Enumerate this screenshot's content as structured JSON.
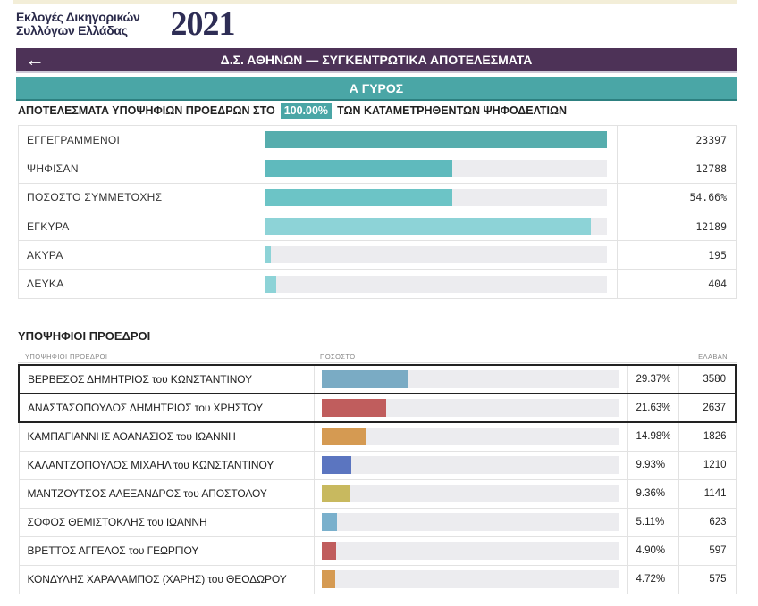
{
  "header": {
    "logo_line1": "Εκλογές Δικηγορικών",
    "logo_line2": "Συλλόγων Ελλάδας",
    "year": "2021"
  },
  "titlebar": {
    "title": "Δ.Σ. ΑΘΗΝΩΝ — ΣΥΓΚΕΝΤΡΩΤΙΚΑ ΑΠΟΤΕΛΕΣΜΑΤΑ",
    "back_icon": "arrow-left-icon"
  },
  "round": {
    "label": "Α ΓΥΡΟΣ"
  },
  "results_head": {
    "prefix": "ΑΠΟΤΕΛΕΣΜΑΤΑ ΥΠΟΨΗΦΙΩΝ ΠΡΟΕΔΡΩΝ ΣΤΟ",
    "percent": "100.00%",
    "suffix": "ΤΩΝ ΚΑΤΑΜΕΤΡΗΘΕΝΤΩΝ ΨΗΦΟΔΕΛΤΙΩΝ"
  },
  "stats": [
    {
      "label": "ΕΓΓΕΓΡΑΜΜΕΝΟΙ",
      "value": "23397",
      "fraction": 1.0,
      "color": "#56adad"
    },
    {
      "label": "ΨΗΦΙΣΑΝ",
      "value": "12788",
      "fraction": 0.5466,
      "color": "#5fbabd"
    },
    {
      "label": "ΠΟΣΟΣΤΟ ΣΥΜΜΕΤΟΧΗΣ",
      "value": "54.66%",
      "fraction": 0.5466,
      "color": "#6cc4c6"
    },
    {
      "label": "ΕΓΚΥΡΑ",
      "value": "12189",
      "fraction": 0.953,
      "color": "#8dd3d7"
    },
    {
      "label": "ΑΚΥΡΑ",
      "value": "195",
      "fraction": 0.015,
      "color": "#8dd3d7"
    },
    {
      "label": "ΛΕΥΚΑ",
      "value": "404",
      "fraction": 0.031,
      "color": "#8dd3d7"
    }
  ],
  "candidates_section": {
    "title": "ΥΠΟΨΗΦΙΟΙ ΠΡΟΕΔΡΟΙ",
    "col_name": "ΥΠΟΨΗΦΙΟΙ ΠΡΟΕΔΡΟΙ",
    "col_pct": "ΠΟΣΟΣΤΟ",
    "col_votes": "ΕΛΑΒΑΝ"
  },
  "candidates": [
    {
      "name": "ΒΕΡΒΕΣΟΣ ΔΗΜΗΤΡΙΟΣ του ΚΩΝΣΤΑΝΤΙΝΟΥ",
      "percent": "29.37%",
      "votes": "3580",
      "fraction": 0.2937,
      "color": "#7aabc4",
      "highlight": true
    },
    {
      "name": "ΑΝΑΣΤΑΣΟΠΟΥΛΟΣ ΔΗΜΗΤΡΙΟΣ του ΧΡΗΣΤΟΥ",
      "percent": "21.63%",
      "votes": "2637",
      "fraction": 0.2163,
      "color": "#c05d5d",
      "highlight": true
    },
    {
      "name": "ΚΑΜΠΑΓΙΑΝΝΗΣ ΑΘΑΝΑΣΙΟΣ του ΙΩΑΝΝΗ",
      "percent": "14.98%",
      "votes": "1826",
      "fraction": 0.1498,
      "color": "#d59a52",
      "highlight": false
    },
    {
      "name": "ΚΑΛΑΝΤΖΟΠΟΥΛΟΣ ΜΙΧΑΗΛ του ΚΩΝΣΤΑΝΤΙΝΟΥ",
      "percent": "9.93%",
      "votes": "1210",
      "fraction": 0.0993,
      "color": "#5b75c0",
      "highlight": false
    },
    {
      "name": "ΜΑΝΤΖΟΥΤΣΟΣ ΑΛΕΞΑΝΔΡΟΣ του ΑΠΟΣΤΟΛΟΥ",
      "percent": "9.36%",
      "votes": "1141",
      "fraction": 0.0936,
      "color": "#c8b95f",
      "highlight": false
    },
    {
      "name": "ΣΟΦΟΣ ΘΕΜΙΣΤΟΚΛΗΣ του ΙΩΑΝΝΗ",
      "percent": "5.11%",
      "votes": "623",
      "fraction": 0.0511,
      "color": "#7ab0cc",
      "highlight": false
    },
    {
      "name": "ΒΡΕΤΤΟΣ ΑΓΓΕΛΟΣ του ΓΕΩΡΓΙΟΥ",
      "percent": "4.90%",
      "votes": "597",
      "fraction": 0.049,
      "color": "#c05d5d",
      "highlight": false
    },
    {
      "name": "ΚΟΝΔΥΛΗΣ ΧΑΡΑΛΑΜΠΟΣ (ΧΑΡΗΣ) του ΘΕΟΔΩΡΟΥ",
      "percent": "4.72%",
      "votes": "575",
      "fraction": 0.0472,
      "color": "#d59a52",
      "highlight": false
    }
  ]
}
